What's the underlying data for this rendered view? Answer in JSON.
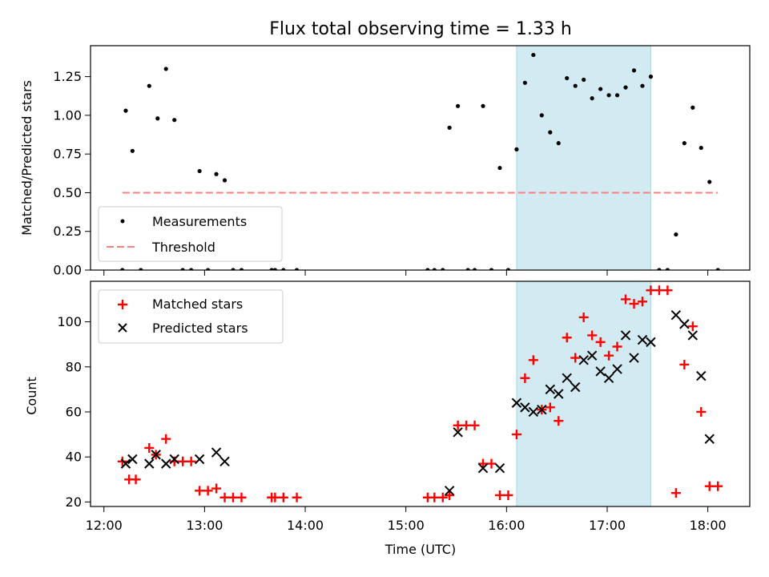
{
  "chart_data": {
    "title": "Flux total observing time = 1.33 h",
    "xlabel": "Time (UTC)",
    "x_ticks": [
      "12:00",
      "13:00",
      "14:00",
      "15:00",
      "16:00",
      "17:00",
      "18:00"
    ],
    "shaded_interval": {
      "start": "16:06",
      "end": "17:26",
      "color": "#add8e6"
    },
    "panels": [
      {
        "type": "scatter",
        "ylabel": "Matched/Predicted stars",
        "ylim": [
          0,
          1.45
        ],
        "y_ticks": [
          "0.00",
          "0.25",
          "0.50",
          "0.75",
          "1.00",
          "1.25"
        ],
        "legend_position": "lower-left",
        "series": [
          {
            "name": "Measurements",
            "marker": "dot",
            "color": "#000000",
            "points": [
              [
                "12:11",
                0.0
              ],
              [
                "12:13",
                1.03
              ],
              [
                "12:17",
                0.77
              ],
              [
                "12:22",
                0.0
              ],
              [
                "12:27",
                1.19
              ],
              [
                "12:32",
                0.98
              ],
              [
                "12:37",
                1.3
              ],
              [
                "12:42",
                0.97
              ],
              [
                "12:47",
                0.0
              ],
              [
                "12:52",
                0.0
              ],
              [
                "12:57",
                0.64
              ],
              [
                "13:02",
                0.0
              ],
              [
                "13:07",
                0.62
              ],
              [
                "13:12",
                0.58
              ],
              [
                "13:17",
                0.0
              ],
              [
                "13:22",
                0.0
              ],
              [
                "13:40",
                0.0
              ],
              [
                "13:42",
                0.0
              ],
              [
                "13:47",
                0.0
              ],
              [
                "13:55",
                0.0
              ],
              [
                "15:13",
                0.0
              ],
              [
                "15:17",
                0.0
              ],
              [
                "15:22",
                0.0
              ],
              [
                "15:26",
                0.92
              ],
              [
                "15:31",
                1.06
              ],
              [
                "15:37",
                0.0
              ],
              [
                "15:41",
                0.0
              ],
              [
                "15:46",
                1.06
              ],
              [
                "15:51",
                0.0
              ],
              [
                "15:56",
                0.66
              ],
              [
                "16:01",
                0.0
              ],
              [
                "16:06",
                0.78
              ],
              [
                "16:11",
                1.21
              ],
              [
                "16:16",
                1.39
              ],
              [
                "16:21",
                1.0
              ],
              [
                "16:26",
                0.89
              ],
              [
                "16:31",
                0.82
              ],
              [
                "16:36",
                1.24
              ],
              [
                "16:41",
                1.19
              ],
              [
                "16:46",
                1.23
              ],
              [
                "16:51",
                1.11
              ],
              [
                "16:56",
                1.17
              ],
              [
                "17:01",
                1.13
              ],
              [
                "17:06",
                1.13
              ],
              [
                "17:11",
                1.18
              ],
              [
                "17:16",
                1.29
              ],
              [
                "17:21",
                1.19
              ],
              [
                "17:26",
                1.25
              ],
              [
                "17:31",
                0.0
              ],
              [
                "17:36",
                0.0
              ],
              [
                "17:41",
                0.23
              ],
              [
                "17:46",
                0.82
              ],
              [
                "17:51",
                1.05
              ],
              [
                "17:56",
                0.79
              ],
              [
                "18:01",
                0.57
              ],
              [
                "18:06",
                0.0
              ]
            ]
          },
          {
            "name": "Threshold",
            "marker": "dashed-line",
            "color": "#ff7f7f",
            "points": [
              [
                "12:11",
                0.5
              ],
              [
                "18:06",
                0.5
              ]
            ]
          }
        ]
      },
      {
        "type": "scatter",
        "ylabel": "Count",
        "ylim": [
          18,
          118
        ],
        "y_ticks": [
          "20",
          "40",
          "60",
          "80",
          "100"
        ],
        "legend_position": "upper-left",
        "series": [
          {
            "name": "Matched stars",
            "marker": "plus",
            "color": "#ff0000",
            "points": [
              [
                "12:11",
                38
              ],
              [
                "12:15",
                30
              ],
              [
                "12:19",
                30
              ],
              [
                "12:27",
                44
              ],
              [
                "12:31",
                41
              ],
              [
                "12:37",
                48
              ],
              [
                "12:42",
                38
              ],
              [
                "12:47",
                38
              ],
              [
                "12:52",
                38
              ],
              [
                "12:57",
                25
              ],
              [
                "13:02",
                25
              ],
              [
                "13:07",
                26
              ],
              [
                "13:12",
                22
              ],
              [
                "13:17",
                22
              ],
              [
                "13:22",
                22
              ],
              [
                "13:40",
                22
              ],
              [
                "13:42",
                22
              ],
              [
                "13:47",
                22
              ],
              [
                "13:55",
                22
              ],
              [
                "15:13",
                22
              ],
              [
                "15:17",
                22
              ],
              [
                "15:22",
                22
              ],
              [
                "15:26",
                23
              ],
              [
                "15:31",
                54
              ],
              [
                "15:36",
                54
              ],
              [
                "15:41",
                54
              ],
              [
                "15:46",
                37
              ],
              [
                "15:51",
                37
              ],
              [
                "15:56",
                23
              ],
              [
                "16:01",
                23
              ],
              [
                "16:06",
                50
              ],
              [
                "16:11",
                75
              ],
              [
                "16:16",
                83
              ],
              [
                "16:21",
                61
              ],
              [
                "16:26",
                62
              ],
              [
                "16:31",
                56
              ],
              [
                "16:36",
                93
              ],
              [
                "16:41",
                84
              ],
              [
                "16:46",
                102
              ],
              [
                "16:51",
                94
              ],
              [
                "16:56",
                91
              ],
              [
                "17:01",
                85
              ],
              [
                "17:06",
                89
              ],
              [
                "17:11",
                110
              ],
              [
                "17:16",
                108
              ],
              [
                "17:21",
                109
              ],
              [
                "17:26",
                114
              ],
              [
                "17:31",
                114
              ],
              [
                "17:36",
                114
              ],
              [
                "17:41",
                24
              ],
              [
                "17:46",
                81
              ],
              [
                "17:51",
                98
              ],
              [
                "17:56",
                60
              ],
              [
                "18:01",
                27
              ],
              [
                "18:06",
                27
              ]
            ]
          },
          {
            "name": "Predicted stars",
            "marker": "x",
            "color": "#000000",
            "points": [
              [
                "12:13",
                37
              ],
              [
                "12:17",
                39
              ],
              [
                "12:27",
                37
              ],
              [
                "12:31",
                41
              ],
              [
                "12:37",
                37
              ],
              [
                "12:42",
                39
              ],
              [
                "12:57",
                39
              ],
              [
                "13:07",
                42
              ],
              [
                "13:12",
                38
              ],
              [
                "15:26",
                25
              ],
              [
                "15:31",
                51
              ],
              [
                "15:46",
                35
              ],
              [
                "15:56",
                35
              ],
              [
                "16:06",
                64
              ],
              [
                "16:11",
                62
              ],
              [
                "16:16",
                60
              ],
              [
                "16:21",
                61
              ],
              [
                "16:26",
                70
              ],
              [
                "16:31",
                68
              ],
              [
                "16:36",
                75
              ],
              [
                "16:41",
                71
              ],
              [
                "16:46",
                83
              ],
              [
                "16:51",
                85
              ],
              [
                "16:56",
                78
              ],
              [
                "17:01",
                75
              ],
              [
                "17:06",
                79
              ],
              [
                "17:11",
                94
              ],
              [
                "17:16",
                84
              ],
              [
                "17:21",
                92
              ],
              [
                "17:26",
                91
              ],
              [
                "17:41",
                103
              ],
              [
                "17:46",
                99
              ],
              [
                "17:51",
                94
              ],
              [
                "17:56",
                76
              ],
              [
                "18:01",
                48
              ]
            ]
          }
        ]
      }
    ]
  }
}
